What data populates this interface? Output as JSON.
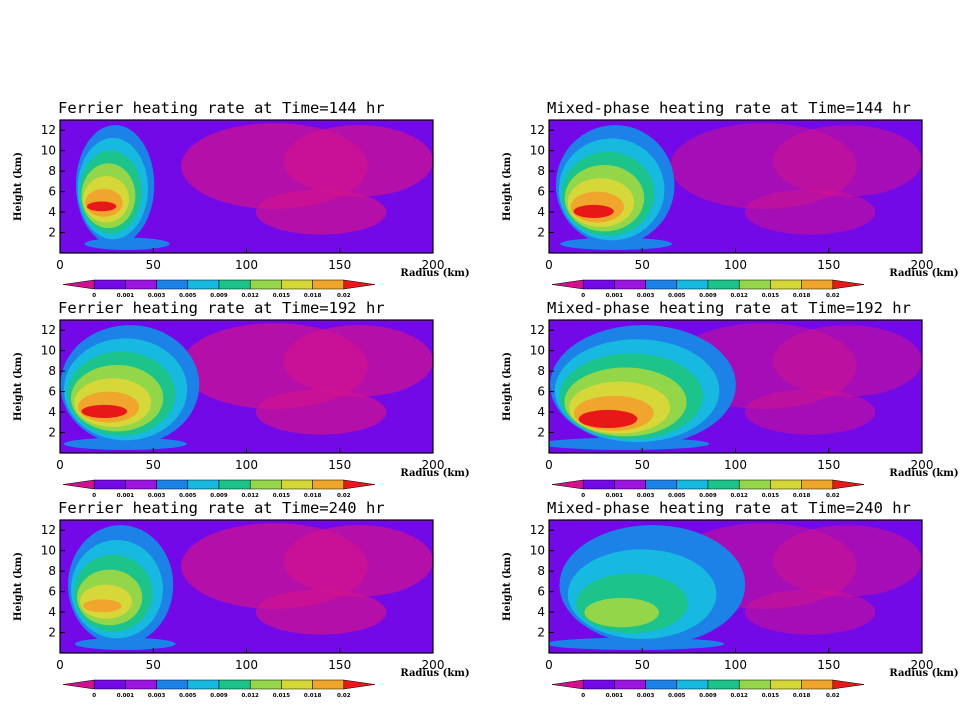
{
  "figure": {
    "colormap": {
      "levels": [
        "0",
        "0.001",
        "0.003",
        "0.005",
        "0.009",
        "0.012",
        "0.015",
        "0.018",
        "0.02"
      ],
      "colors": [
        "#d0128f",
        "#7209e6",
        "#9b14e0",
        "#1c82e8",
        "#17b9e1",
        "#1cc48c",
        "#93d64a",
        "#d6d83a",
        "#f0a52c",
        "#e81818"
      ]
    },
    "common": {
      "ylabel": "Height (km)",
      "xlabel": "Radius (km)",
      "xlim": [
        0,
        200
      ],
      "ylim": [
        0,
        13
      ],
      "xticks": [
        "0",
        "50",
        "100",
        "150",
        "200"
      ],
      "yticks": [
        "2",
        "4",
        "6",
        "8",
        "10",
        "12"
      ]
    }
  },
  "chart_data": [
    {
      "type": "heatmap",
      "title": "Ferrier heating rate at Time=144 hr",
      "xlabel": "Radius (km)",
      "ylabel": "Height (km)",
      "xlim": [
        0,
        200
      ],
      "ylim": [
        0,
        13
      ],
      "colorbar_levels": [
        0,
        0.001,
        0.003,
        0.005,
        0.009,
        0.012,
        0.015,
        0.018,
        0.02
      ],
      "core": {
        "radius_km": 18,
        "height_km": 5,
        "peak_level": 0.02,
        "peak_height_range_km": [
          1,
          9
        ]
      },
      "anvil_extent_km": 38,
      "top_km": 12.5,
      "outer_region_level": 0.0
    },
    {
      "type": "heatmap",
      "title": "Mixed-phase heating rate at Time=144 hr",
      "xlabel": "Radius (km)",
      "ylabel": "Height (km)",
      "xlim": [
        0,
        200
      ],
      "ylim": [
        0,
        13
      ],
      "colorbar_levels": [
        0,
        0.001,
        0.003,
        0.005,
        0.009,
        0.012,
        0.015,
        0.018,
        0.02
      ],
      "core": {
        "radius_km": 18,
        "height_km": 4,
        "peak_level": 0.02,
        "peak_height_range_km": [
          1,
          7
        ]
      },
      "anvil_extent_km": 50,
      "top_km": 12.5,
      "outer_region_level": 0.0
    },
    {
      "type": "heatmap",
      "title": "Ferrier heating rate at Time=192 hr",
      "xlabel": "Radius (km)",
      "ylabel": "Height (km)",
      "xlim": [
        0,
        200
      ],
      "ylim": [
        0,
        13
      ],
      "colorbar_levels": [
        0,
        0.001,
        0.003,
        0.005,
        0.009,
        0.012,
        0.015,
        0.018,
        0.02
      ],
      "core": {
        "radius_km": 17,
        "height_km": 4,
        "peak_level": 0.02,
        "peak_height_range_km": [
          1,
          7
        ]
      },
      "anvil_extent_km": 55,
      "top_km": 12.5,
      "outer_region_level": 0.0
    },
    {
      "type": "heatmap",
      "title": "Mixed-phase heating rate at Time=192 hr",
      "xlabel": "Radius (km)",
      "ylabel": "Height (km)",
      "xlim": [
        0,
        200
      ],
      "ylim": [
        0,
        13
      ],
      "colorbar_levels": [
        0,
        0.001,
        0.003,
        0.005,
        0.009,
        0.012,
        0.015,
        0.018,
        0.02
      ],
      "core": {
        "radius_km": 23,
        "height_km": 2.5,
        "peak_level": 0.02,
        "peak_height_range_km": [
          1.5,
          4
        ]
      },
      "anvil_extent_km": 75,
      "top_km": 12.5,
      "outer_region_level": 0.0
    },
    {
      "type": "heatmap",
      "title": "Ferrier heating rate at Time=240 hr",
      "xlabel": "Radius (km)",
      "ylabel": "Height (km)",
      "xlim": [
        0,
        200
      ],
      "ylim": [
        0,
        13
      ],
      "colorbar_levels": [
        0,
        0.001,
        0.003,
        0.005,
        0.009,
        0.012,
        0.015,
        0.018,
        0.02
      ],
      "core": {
        "radius_km": 17,
        "height_km": 5,
        "peak_level": 0.018,
        "peak_height_range_km": [
          1,
          9
        ]
      },
      "anvil_extent_km": 45,
      "top_km": 12.5,
      "outer_region_level": 0.0
    },
    {
      "type": "heatmap",
      "title": "Mixed-phase heating rate at Time=240 hr",
      "xlabel": "Radius (km)",
      "ylabel": "Height (km)",
      "xlim": [
        0,
        200
      ],
      "ylim": [
        0,
        13
      ],
      "colorbar_levels": [
        0,
        0.001,
        0.003,
        0.005,
        0.009,
        0.012,
        0.015,
        0.018,
        0.02
      ],
      "core": {
        "radius_km": 28,
        "height_km": 3,
        "peak_level": 0.012,
        "peak_height_range_km": [
          1.5,
          5
        ]
      },
      "anvil_extent_km": 80,
      "top_km": 12.5,
      "outer_region_level": 0.0
    }
  ]
}
